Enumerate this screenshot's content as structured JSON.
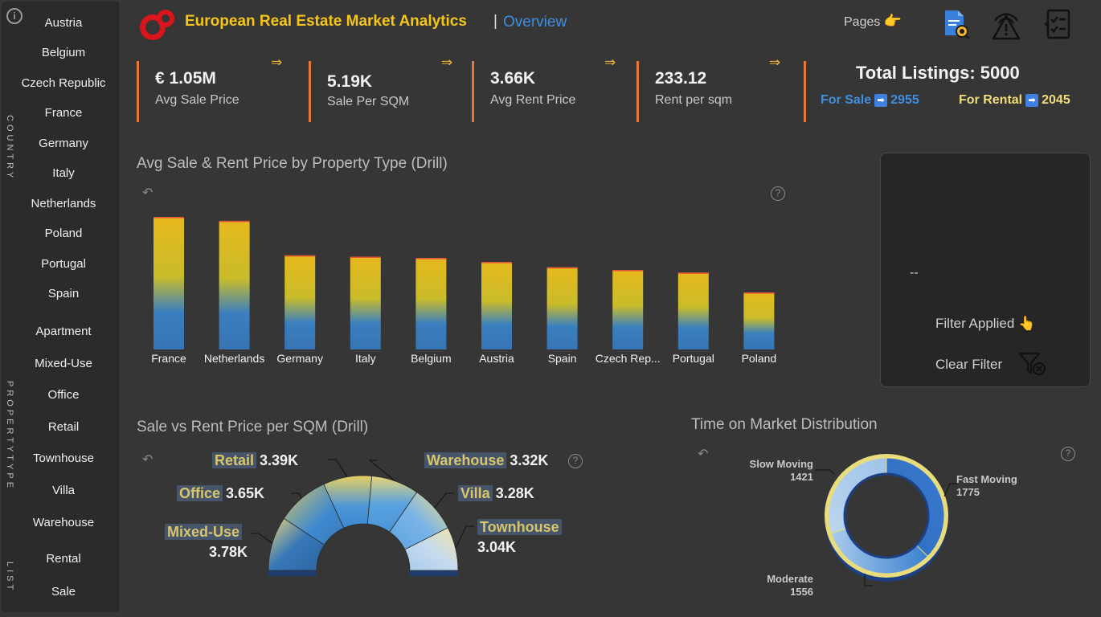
{
  "sidebar": {
    "country_label": "COUNTRY",
    "countries": [
      "Austria",
      "Belgium",
      "Czech Republic",
      "France",
      "Germany",
      "Italy",
      "Netherlands",
      "Poland",
      "Portugal",
      "Spain"
    ],
    "propertytype_label": "PROPERTYTYPE",
    "property_types": [
      "Apartment",
      "Mixed-Use",
      "Office",
      "Retail",
      "Townhouse",
      "Villa",
      "Warehouse"
    ],
    "list_label": "LIST",
    "lists": [
      "Rental",
      "Sale"
    ]
  },
  "header": {
    "title": "European Real Estate Market Analytics",
    "separator": "|",
    "page_name": "Overview",
    "pages_label": "Pages",
    "pages_icon": "pointing-hand-icon",
    "icons": [
      "document-search-icon",
      "signal-warning-icon",
      "checklist-icon"
    ]
  },
  "kpis": [
    {
      "value": "€ 1.05M",
      "label": "Avg Sale Price"
    },
    {
      "value": "5.19K",
      "label": "Sale Per SQM"
    },
    {
      "value": "3.66K",
      "label": "Avg Rent Price"
    },
    {
      "value": "233.12",
      "label": "Rent per sqm"
    }
  ],
  "kpi_arrow": "⇒",
  "total": {
    "label": "Total Listings: 5000",
    "for_sale_label": "For Sale",
    "for_sale_value": "2955",
    "for_rental_label": "For Rental",
    "for_rental_value": "2045",
    "arrow_glyph": "➡"
  },
  "filter_panel": {
    "selection": "--",
    "filter_applied": "Filter Applied",
    "clear_filter": "Clear Filter"
  },
  "colors": {
    "accent_orange": "#e8783a",
    "title_yellow": "#f5c518",
    "link_blue": "#3f8fe0",
    "bar_yellow": "#e6b81c",
    "bar_blue": "#3877b8"
  },
  "chart_data": [
    {
      "type": "bar",
      "title": "Avg Sale & Rent Price by Property Type (Drill)",
      "categories": [
        "France",
        "Netherlands",
        "Germany",
        "Italy",
        "Belgium",
        "Austria",
        "Spain",
        "Czech Rep...",
        "Portugal",
        "Poland"
      ],
      "values": [
        1.0,
        0.97,
        0.71,
        0.7,
        0.69,
        0.66,
        0.62,
        0.6,
        0.58,
        0.43
      ],
      "grid": false
    },
    {
      "type": "pie",
      "title": "Sale vs Rent Price per SQM (Drill)",
      "labels": [
        "Mixed-Use",
        "Office",
        "Retail",
        "Warehouse",
        "Villa",
        "Townhouse"
      ],
      "display_values": [
        "3.78K",
        "3.65K",
        "3.39K",
        "3.32K",
        "3.28K",
        "3.04K"
      ],
      "values": [
        3.78,
        3.65,
        3.39,
        3.32,
        3.28,
        3.04
      ]
    },
    {
      "type": "pie",
      "title": "Time on Market Distribution",
      "labels": [
        "Fast Moving",
        "Moderate",
        "Slow Moving"
      ],
      "values": [
        1775,
        1556,
        1421
      ]
    }
  ]
}
